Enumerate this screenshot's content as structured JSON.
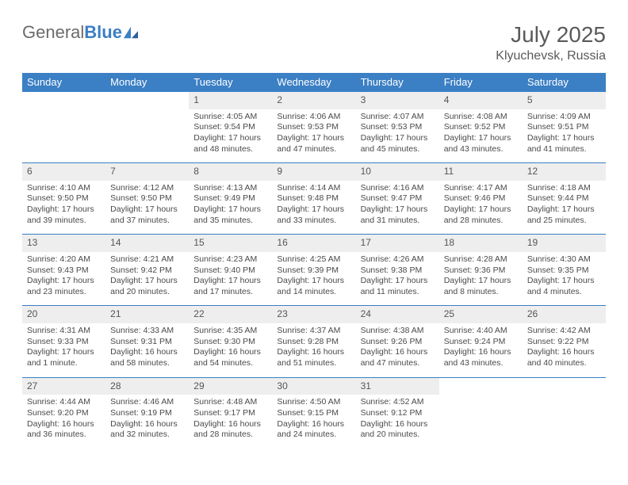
{
  "logo": {
    "word1": "General",
    "word2": "Blue"
  },
  "title": "July 2025",
  "location": "Klyuchevsk, Russia",
  "colors": {
    "header_bg": "#3b7fc4",
    "header_text": "#ffffff",
    "daynum_bg": "#eeeeee",
    "border": "#3b7fc4",
    "text": "#4a4a4a",
    "title": "#5a5a5a"
  },
  "dow": [
    "Sunday",
    "Monday",
    "Tuesday",
    "Wednesday",
    "Thursday",
    "Friday",
    "Saturday"
  ],
  "weeks": [
    [
      null,
      null,
      {
        "n": "1",
        "sr": "Sunrise: 4:05 AM",
        "ss": "Sunset: 9:54 PM",
        "d1": "Daylight: 17 hours",
        "d2": "and 48 minutes."
      },
      {
        "n": "2",
        "sr": "Sunrise: 4:06 AM",
        "ss": "Sunset: 9:53 PM",
        "d1": "Daylight: 17 hours",
        "d2": "and 47 minutes."
      },
      {
        "n": "3",
        "sr": "Sunrise: 4:07 AM",
        "ss": "Sunset: 9:53 PM",
        "d1": "Daylight: 17 hours",
        "d2": "and 45 minutes."
      },
      {
        "n": "4",
        "sr": "Sunrise: 4:08 AM",
        "ss": "Sunset: 9:52 PM",
        "d1": "Daylight: 17 hours",
        "d2": "and 43 minutes."
      },
      {
        "n": "5",
        "sr": "Sunrise: 4:09 AM",
        "ss": "Sunset: 9:51 PM",
        "d1": "Daylight: 17 hours",
        "d2": "and 41 minutes."
      }
    ],
    [
      {
        "n": "6",
        "sr": "Sunrise: 4:10 AM",
        "ss": "Sunset: 9:50 PM",
        "d1": "Daylight: 17 hours",
        "d2": "and 39 minutes."
      },
      {
        "n": "7",
        "sr": "Sunrise: 4:12 AM",
        "ss": "Sunset: 9:50 PM",
        "d1": "Daylight: 17 hours",
        "d2": "and 37 minutes."
      },
      {
        "n": "8",
        "sr": "Sunrise: 4:13 AM",
        "ss": "Sunset: 9:49 PM",
        "d1": "Daylight: 17 hours",
        "d2": "and 35 minutes."
      },
      {
        "n": "9",
        "sr": "Sunrise: 4:14 AM",
        "ss": "Sunset: 9:48 PM",
        "d1": "Daylight: 17 hours",
        "d2": "and 33 minutes."
      },
      {
        "n": "10",
        "sr": "Sunrise: 4:16 AM",
        "ss": "Sunset: 9:47 PM",
        "d1": "Daylight: 17 hours",
        "d2": "and 31 minutes."
      },
      {
        "n": "11",
        "sr": "Sunrise: 4:17 AM",
        "ss": "Sunset: 9:46 PM",
        "d1": "Daylight: 17 hours",
        "d2": "and 28 minutes."
      },
      {
        "n": "12",
        "sr": "Sunrise: 4:18 AM",
        "ss": "Sunset: 9:44 PM",
        "d1": "Daylight: 17 hours",
        "d2": "and 25 minutes."
      }
    ],
    [
      {
        "n": "13",
        "sr": "Sunrise: 4:20 AM",
        "ss": "Sunset: 9:43 PM",
        "d1": "Daylight: 17 hours",
        "d2": "and 23 minutes."
      },
      {
        "n": "14",
        "sr": "Sunrise: 4:21 AM",
        "ss": "Sunset: 9:42 PM",
        "d1": "Daylight: 17 hours",
        "d2": "and 20 minutes."
      },
      {
        "n": "15",
        "sr": "Sunrise: 4:23 AM",
        "ss": "Sunset: 9:40 PM",
        "d1": "Daylight: 17 hours",
        "d2": "and 17 minutes."
      },
      {
        "n": "16",
        "sr": "Sunrise: 4:25 AM",
        "ss": "Sunset: 9:39 PM",
        "d1": "Daylight: 17 hours",
        "d2": "and 14 minutes."
      },
      {
        "n": "17",
        "sr": "Sunrise: 4:26 AM",
        "ss": "Sunset: 9:38 PM",
        "d1": "Daylight: 17 hours",
        "d2": "and 11 minutes."
      },
      {
        "n": "18",
        "sr": "Sunrise: 4:28 AM",
        "ss": "Sunset: 9:36 PM",
        "d1": "Daylight: 17 hours",
        "d2": "and 8 minutes."
      },
      {
        "n": "19",
        "sr": "Sunrise: 4:30 AM",
        "ss": "Sunset: 9:35 PM",
        "d1": "Daylight: 17 hours",
        "d2": "and 4 minutes."
      }
    ],
    [
      {
        "n": "20",
        "sr": "Sunrise: 4:31 AM",
        "ss": "Sunset: 9:33 PM",
        "d1": "Daylight: 17 hours",
        "d2": "and 1 minute."
      },
      {
        "n": "21",
        "sr": "Sunrise: 4:33 AM",
        "ss": "Sunset: 9:31 PM",
        "d1": "Daylight: 16 hours",
        "d2": "and 58 minutes."
      },
      {
        "n": "22",
        "sr": "Sunrise: 4:35 AM",
        "ss": "Sunset: 9:30 PM",
        "d1": "Daylight: 16 hours",
        "d2": "and 54 minutes."
      },
      {
        "n": "23",
        "sr": "Sunrise: 4:37 AM",
        "ss": "Sunset: 9:28 PM",
        "d1": "Daylight: 16 hours",
        "d2": "and 51 minutes."
      },
      {
        "n": "24",
        "sr": "Sunrise: 4:38 AM",
        "ss": "Sunset: 9:26 PM",
        "d1": "Daylight: 16 hours",
        "d2": "and 47 minutes."
      },
      {
        "n": "25",
        "sr": "Sunrise: 4:40 AM",
        "ss": "Sunset: 9:24 PM",
        "d1": "Daylight: 16 hours",
        "d2": "and 43 minutes."
      },
      {
        "n": "26",
        "sr": "Sunrise: 4:42 AM",
        "ss": "Sunset: 9:22 PM",
        "d1": "Daylight: 16 hours",
        "d2": "and 40 minutes."
      }
    ],
    [
      {
        "n": "27",
        "sr": "Sunrise: 4:44 AM",
        "ss": "Sunset: 9:20 PM",
        "d1": "Daylight: 16 hours",
        "d2": "and 36 minutes."
      },
      {
        "n": "28",
        "sr": "Sunrise: 4:46 AM",
        "ss": "Sunset: 9:19 PM",
        "d1": "Daylight: 16 hours",
        "d2": "and 32 minutes."
      },
      {
        "n": "29",
        "sr": "Sunrise: 4:48 AM",
        "ss": "Sunset: 9:17 PM",
        "d1": "Daylight: 16 hours",
        "d2": "and 28 minutes."
      },
      {
        "n": "30",
        "sr": "Sunrise: 4:50 AM",
        "ss": "Sunset: 9:15 PM",
        "d1": "Daylight: 16 hours",
        "d2": "and 24 minutes."
      },
      {
        "n": "31",
        "sr": "Sunrise: 4:52 AM",
        "ss": "Sunset: 9:12 PM",
        "d1": "Daylight: 16 hours",
        "d2": "and 20 minutes."
      },
      null,
      null
    ]
  ]
}
